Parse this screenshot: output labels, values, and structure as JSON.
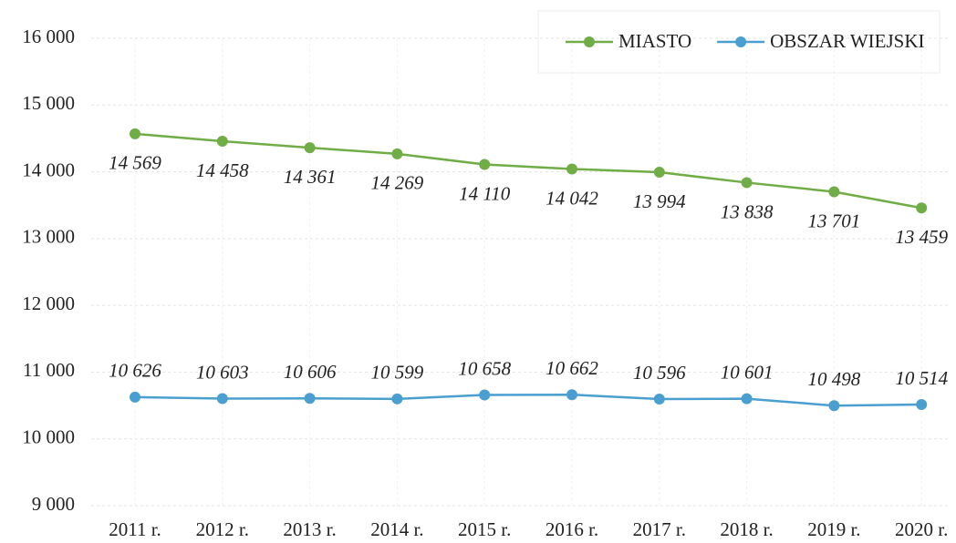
{
  "chart_data": {
    "type": "line",
    "categories": [
      "2011 r.",
      "2012 r.",
      "2013 r.",
      "2014 r.",
      "2015 r.",
      "2016 r.",
      "2017 r.",
      "2018 r.",
      "2019 r.",
      "2020 r."
    ],
    "series": [
      {
        "name": "MIASTO",
        "color": "#70ad47",
        "label_position": "below",
        "values": [
          14569,
          14458,
          14361,
          14269,
          14110,
          14042,
          13994,
          13838,
          13701,
          13459
        ],
        "value_labels": [
          "14 569",
          "14 458",
          "14 361",
          "14 269",
          "14 110",
          "14 042",
          "13 994",
          "13 838",
          "13 701",
          "13 459"
        ]
      },
      {
        "name": "OBSZAR WIEJSKI",
        "color": "#4a9fd0",
        "label_position": "above",
        "values": [
          10626,
          10603,
          10606,
          10599,
          10658,
          10662,
          10596,
          10601,
          10498,
          10514
        ],
        "value_labels": [
          "10 626",
          "10 603",
          "10 606",
          "10 599",
          "10 658",
          "10 662",
          "10 596",
          "10 601",
          "10 498",
          "10 514"
        ]
      }
    ],
    "ylim": [
      9000,
      16000
    ],
    "yticks": [
      {
        "value": 9000,
        "label": "9 000"
      },
      {
        "value": 10000,
        "label": "10 000"
      },
      {
        "value": 11000,
        "label": "11 000"
      },
      {
        "value": 12000,
        "label": "12 000"
      },
      {
        "value": 13000,
        "label": "13 000"
      },
      {
        "value": 14000,
        "label": "14 000"
      },
      {
        "value": 15000,
        "label": "15 000"
      },
      {
        "value": 16000,
        "label": "16 000"
      }
    ],
    "grid": true,
    "legend": "top-right"
  }
}
